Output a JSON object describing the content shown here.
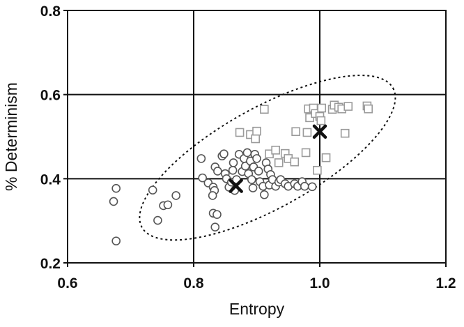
{
  "chart_data": {
    "type": "scatter",
    "xlabel": "Entropy",
    "ylabel": "% Determinism",
    "xlim": [
      0.6,
      1.2
    ],
    "ylim": [
      0.2,
      0.8
    ],
    "x_ticks": [
      "0.6",
      "0.8",
      "1.0",
      "1.2"
    ],
    "y_ticks": [
      "0.2",
      "0.4",
      "0.6",
      "0.8"
    ],
    "x_tick_values": [
      0.6,
      0.8,
      1.0,
      1.2
    ],
    "y_tick_values": [
      0.2,
      0.4,
      0.6,
      0.8
    ],
    "grid": true,
    "legend": "none",
    "colors": {
      "circles": "#555555",
      "squares": "#9a9a9a",
      "centroid": "#111111",
      "ellipse": "#111111",
      "grid": "#111111"
    },
    "series": [
      {
        "marker": "circle",
        "points": [
          [
            0.677,
            0.377
          ],
          [
            0.673,
            0.346
          ],
          [
            0.677,
            0.252
          ],
          [
            0.735,
            0.373
          ],
          [
            0.743,
            0.301
          ],
          [
            0.752,
            0.336
          ],
          [
            0.759,
            0.338
          ],
          [
            0.772,
            0.36
          ],
          [
            0.812,
            0.448
          ],
          [
            0.814,
            0.402
          ],
          [
            0.823,
            0.39
          ],
          [
            0.831,
            0.38
          ],
          [
            0.833,
            0.372
          ],
          [
            0.83,
            0.36
          ],
          [
            0.831,
            0.318
          ],
          [
            0.837,
            0.315
          ],
          [
            0.834,
            0.285
          ],
          [
            0.834,
            0.428
          ],
          [
            0.838,
            0.418
          ],
          [
            0.845,
            0.454
          ],
          [
            0.848,
            0.459
          ],
          [
            0.85,
            0.412
          ],
          [
            0.852,
            0.4
          ],
          [
            0.856,
            0.38
          ],
          [
            0.86,
            0.392
          ],
          [
            0.862,
            0.42
          ],
          [
            0.863,
            0.438
          ],
          [
            0.865,
            0.372
          ],
          [
            0.868,
            0.398
          ],
          [
            0.872,
            0.458
          ],
          [
            0.877,
            0.417
          ],
          [
            0.88,
            0.448
          ],
          [
            0.882,
            0.43
          ],
          [
            0.885,
            0.462
          ],
          [
            0.887,
            0.412
          ],
          [
            0.89,
            0.442
          ],
          [
            0.892,
            0.398
          ],
          [
            0.894,
            0.378
          ],
          [
            0.895,
            0.428
          ],
          [
            0.897,
            0.458
          ],
          [
            0.9,
            0.448
          ],
          [
            0.903,
            0.418
          ],
          [
            0.905,
            0.393
          ],
          [
            0.91,
            0.382
          ],
          [
            0.912,
            0.362
          ],
          [
            0.915,
            0.438
          ],
          [
            0.918,
            0.423
          ],
          [
            0.92,
            0.385
          ],
          [
            0.922,
            0.41
          ],
          [
            0.925,
            0.398
          ],
          [
            0.93,
            0.382
          ],
          [
            0.935,
            0.392
          ],
          [
            0.938,
            0.398
          ],
          [
            0.945,
            0.388
          ],
          [
            0.95,
            0.382
          ],
          [
            0.96,
            0.388
          ],
          [
            0.965,
            0.382
          ],
          [
            0.972,
            0.393
          ],
          [
            0.976,
            0.382
          ],
          [
            0.988,
            0.381
          ]
        ]
      },
      {
        "marker": "square",
        "points": [
          [
            0.873,
            0.51
          ],
          [
            0.89,
            0.505
          ],
          [
            0.898,
            0.495
          ],
          [
            0.9,
            0.513
          ],
          [
            0.912,
            0.565
          ],
          [
            0.92,
            0.459
          ],
          [
            0.93,
            0.468
          ],
          [
            0.935,
            0.438
          ],
          [
            0.945,
            0.46
          ],
          [
            0.95,
            0.448
          ],
          [
            0.96,
            0.44
          ],
          [
            0.962,
            0.512
          ],
          [
            0.978,
            0.462
          ],
          [
            0.98,
            0.51
          ],
          [
            0.982,
            0.566
          ],
          [
            0.984,
            0.545
          ],
          [
            0.99,
            0.568
          ],
          [
            0.993,
            0.555
          ],
          [
            0.996,
            0.42
          ],
          [
            1.0,
            0.548
          ],
          [
            1.002,
            0.538
          ],
          [
            1.003,
            0.568
          ],
          [
            1.01,
            0.45
          ],
          [
            1.02,
            0.565
          ],
          [
            1.023,
            0.575
          ],
          [
            1.03,
            0.57
          ],
          [
            1.035,
            0.566
          ],
          [
            1.045,
            0.572
          ],
          [
            1.04,
            0.508
          ],
          [
            1.075,
            0.573
          ],
          [
            1.077,
            0.566
          ]
        ]
      }
    ],
    "centroids": [
      [
        0.867,
        0.383
      ],
      [
        1.0,
        0.512
      ]
    ],
    "ellipse": {
      "center": [
        0.917,
        0.45
      ],
      "style": "dotted"
    }
  }
}
